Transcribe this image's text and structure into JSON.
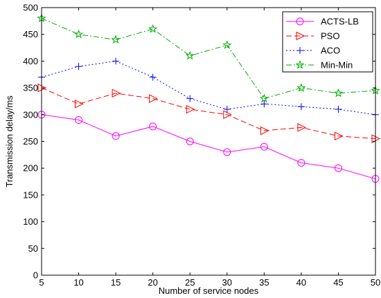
{
  "chart_data": {
    "type": "line",
    "xlabel": "Number of service nodes",
    "ylabel": "Transmission delay/ms",
    "xlim": [
      5,
      50
    ],
    "ylim": [
      0,
      500
    ],
    "x": [
      5,
      10,
      15,
      20,
      25,
      30,
      35,
      40,
      45,
      50
    ],
    "xticks": [
      5,
      10,
      15,
      20,
      25,
      30,
      35,
      40,
      45,
      50
    ],
    "yticks": [
      0,
      50,
      100,
      150,
      200,
      250,
      300,
      350,
      400,
      450,
      500
    ],
    "grid": false,
    "legend_position": "top-right",
    "series": [
      {
        "name": "ACTS-LB",
        "color": "#ff00ff",
        "marker": "circle",
        "dash": "solid",
        "values": [
          300,
          290,
          260,
          278,
          250,
          230,
          240,
          210,
          200,
          180
        ]
      },
      {
        "name": "PSO",
        "color": "#ff0000",
        "marker": "triangle-right",
        "dash": "dash",
        "values": [
          350,
          320,
          340,
          330,
          310,
          300,
          270,
          276,
          260,
          255
        ]
      },
      {
        "name": "ACO",
        "color": "#0000ff",
        "marker": "plus",
        "dash": "dot",
        "values": [
          370,
          390,
          400,
          370,
          330,
          310,
          320,
          315,
          310,
          300
        ]
      },
      {
        "name": "Min-Min",
        "color": "#00aa00",
        "marker": "star",
        "dash": "dashdot",
        "values": [
          480,
          450,
          440,
          460,
          410,
          430,
          330,
          350,
          340,
          345
        ]
      }
    ]
  }
}
